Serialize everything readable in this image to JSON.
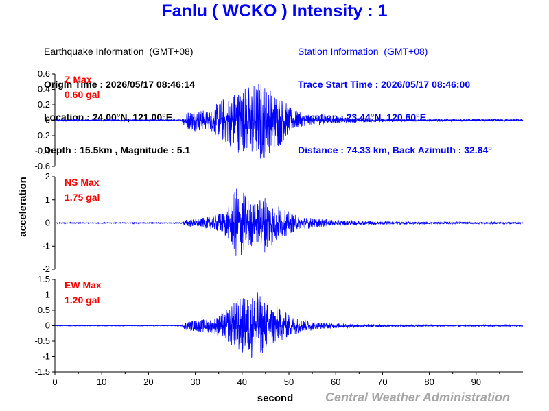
{
  "title": "Fanlu ( WCKO ) Intensity : 1",
  "earthquake": {
    "header": "Earthquake Information  (GMT+08)",
    "origin_time": "Origin Time : 2026/05/17 08:46:14",
    "location": "Location : 24.00°N, 121.00°E",
    "depth_magnitude": "Depth : 15.5km , Magnitude : 5.1"
  },
  "station": {
    "header": "Station Information  (GMT+08)",
    "trace_start": "Trace Start Time : 2026/05/17 08:46:00",
    "location": "Location : 23.44°N, 120.60°E",
    "distance": "Distance : 74.33 km, Back Azimuth : 32.84°"
  },
  "footer": "Central Weather Administration",
  "colors": {
    "title": "#0000ff",
    "trace": "#0000ff",
    "max_label": "#ff0000",
    "station_info": "#0000ff",
    "footer": "#a6a6a6"
  },
  "chart_data": {
    "type": "line",
    "xlabel": "second",
    "ylabel": "acceleration",
    "xlim": [
      0,
      100
    ],
    "xticks": [
      0,
      10,
      20,
      30,
      40,
      50,
      60,
      70,
      80,
      90
    ],
    "panels": [
      {
        "name": "Z",
        "max_title": "Z Max",
        "max_value": "0.60 gal",
        "ylim": [
          -0.6,
          0.6
        ],
        "yticks": [
          0.6,
          0.4,
          0.2,
          0,
          -0.2,
          -0.4,
          -0.6
        ],
        "ytick_labels": [
          "0.6",
          "0.4",
          "0.2",
          "0",
          "-0.2",
          "-0.4",
          "-0.6"
        ],
        "envelope": [
          [
            0,
            0.01
          ],
          [
            27,
            0.01
          ],
          [
            28,
            0.12
          ],
          [
            30,
            0.15
          ],
          [
            33,
            0.12
          ],
          [
            36,
            0.3
          ],
          [
            38,
            0.38
          ],
          [
            40,
            0.45
          ],
          [
            42,
            0.48
          ],
          [
            44,
            0.55
          ],
          [
            46,
            0.42
          ],
          [
            48,
            0.35
          ],
          [
            50,
            0.18
          ],
          [
            53,
            0.08
          ],
          [
            56,
            0.06
          ],
          [
            60,
            0.04
          ],
          [
            70,
            0.02
          ],
          [
            80,
            0.015
          ],
          [
            100,
            0.015
          ]
        ]
      },
      {
        "name": "NS",
        "max_title": "NS Max",
        "max_value": "1.75 gal",
        "ylim": [
          -2,
          2
        ],
        "yticks": [
          2,
          1,
          0,
          -1,
          -2
        ],
        "ytick_labels": [
          "2",
          "1",
          "0",
          "-1",
          "-2"
        ],
        "envelope": [
          [
            0,
            0.02
          ],
          [
            27,
            0.02
          ],
          [
            28,
            0.15
          ],
          [
            31,
            0.2
          ],
          [
            34,
            0.3
          ],
          [
            37,
            0.7
          ],
          [
            39,
            1.7
          ],
          [
            41,
            1.2
          ],
          [
            43,
            0.9
          ],
          [
            45,
            1.3
          ],
          [
            47,
            0.9
          ],
          [
            49,
            0.6
          ],
          [
            52,
            0.3
          ],
          [
            56,
            0.2
          ],
          [
            60,
            0.12
          ],
          [
            70,
            0.08
          ],
          [
            80,
            0.05
          ],
          [
            100,
            0.04
          ]
        ]
      },
      {
        "name": "EW",
        "max_title": "EW Max",
        "max_value": "1.20 gal",
        "ylim": [
          -1.5,
          1.5
        ],
        "yticks": [
          1.5,
          1,
          0.5,
          0,
          -0.5,
          -1,
          -1.5
        ],
        "ytick_labels": [
          "1.5",
          "1",
          "0.5",
          "0",
          "-0.5",
          "-1",
          "-1.5"
        ],
        "envelope": [
          [
            0,
            0.01
          ],
          [
            27,
            0.01
          ],
          [
            28,
            0.15
          ],
          [
            31,
            0.2
          ],
          [
            34,
            0.25
          ],
          [
            37,
            0.55
          ],
          [
            39,
            0.9
          ],
          [
            41,
            0.95
          ],
          [
            43,
            1.15
          ],
          [
            45,
            0.85
          ],
          [
            47,
            0.7
          ],
          [
            49,
            0.45
          ],
          [
            52,
            0.25
          ],
          [
            56,
            0.12
          ],
          [
            60,
            0.08
          ],
          [
            70,
            0.04
          ],
          [
            80,
            0.03
          ],
          [
            100,
            0.03
          ]
        ]
      }
    ]
  }
}
